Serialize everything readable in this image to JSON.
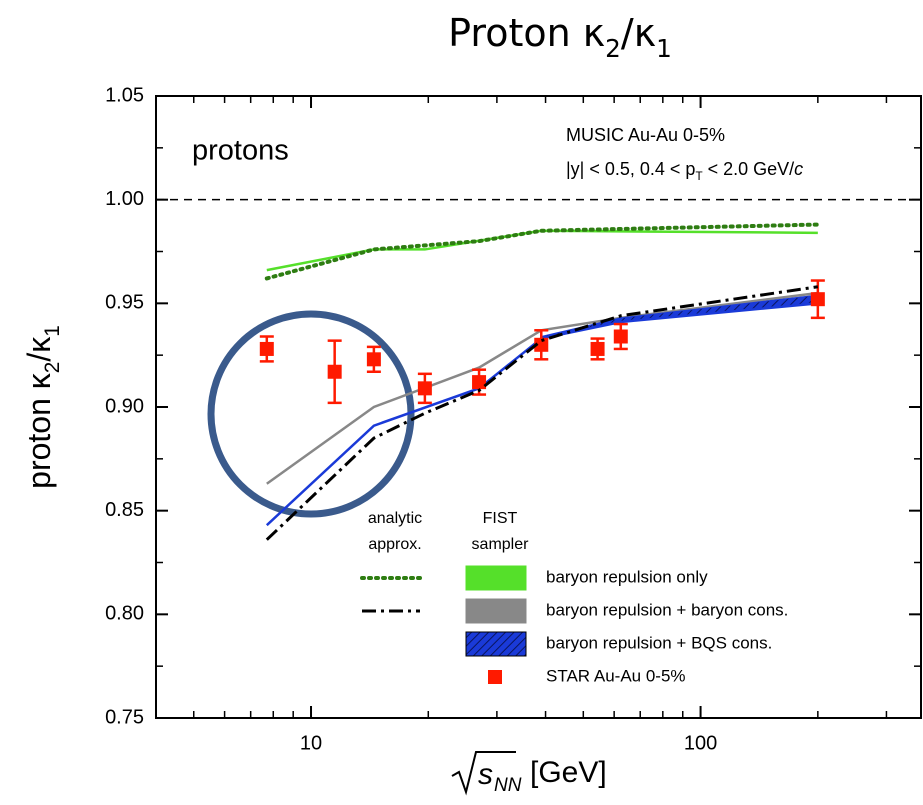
{
  "chart_data": {
    "type": "line",
    "title_parts": [
      "Proton κ",
      "2",
      "/κ",
      "1"
    ],
    "ylabel_parts": [
      "proton κ",
      "2",
      "/κ",
      "1"
    ],
    "xlabel": {
      "symbol": "s",
      "subscript": "NN",
      "unit": "[GeV]"
    },
    "annotations": {
      "label": "protons",
      "model": "MUSIC Au-Au 0-5%",
      "cuts_parts": [
        "|y| < 0.5, 0.4 < p",
        "T",
        " < 2.0 GeV/",
        "c"
      ]
    },
    "xscale": "log",
    "xlim": [
      4,
      368
    ],
    "ylim": [
      0.75,
      1.05
    ],
    "xticks": [
      10,
      100
    ],
    "xminorticks": [
      5,
      6,
      7,
      8,
      9,
      20,
      30,
      40,
      50,
      60,
      70,
      80,
      90,
      200,
      300
    ],
    "yticks": [
      0.75,
      {
        "value": 0.8,
        "label": "0.80"
      },
      0.85,
      {
        "value": 0.9,
        "label": "0.90"
      },
      0.95,
      {
        "value": 1.0,
        "label": "1.00"
      },
      1.05
    ],
    "yminorticks": [
      0.775,
      0.825,
      0.875,
      0.925,
      0.975,
      1.025
    ],
    "reference_line": 1.0,
    "legend_headers": [
      [
        "analytic",
        "approx."
      ],
      [
        "FIST",
        "sampler"
      ]
    ],
    "series": [
      {
        "name": "baryon repulsion only",
        "color": "#55e02a",
        "style": "solid",
        "x": [
          7.7,
          14.5,
          19.6,
          39,
          200
        ],
        "values": [
          0.966,
          0.976,
          0.976,
          0.985,
          0.984
        ]
      },
      {
        "name": "baryon repulsion + baryon cons.",
        "color": "#888888",
        "style": "solid",
        "x": [
          7.7,
          14.5,
          27,
          39,
          62.4,
          200
        ],
        "values": [
          0.863,
          0.9,
          0.919,
          0.937,
          0.943,
          0.955
        ]
      },
      {
        "name": "baryon repulsion + BQS cons.",
        "color": "#1a3ad8",
        "style": "band",
        "x": [
          7.7,
          14.5,
          27,
          39,
          62.4,
          200
        ],
        "values": [
          0.843,
          0.891,
          0.909,
          0.933,
          0.941,
          0.95
        ],
        "upper": [
          null,
          null,
          null,
          0.934,
          0.943,
          0.954
        ]
      },
      {
        "name": "STAR Au-Au 0-5%",
        "color": "#ff1a00",
        "style": "points",
        "x": [
          7.7,
          11.5,
          14.5,
          19.6,
          27,
          39,
          54.4,
          62.4,
          200
        ],
        "values": [
          0.928,
          0.917,
          0.923,
          0.909,
          0.912,
          0.93,
          0.928,
          0.934,
          0.952
        ],
        "errors": [
          0.006,
          0.015,
          0.006,
          0.007,
          0.006,
          0.007,
          0.005,
          0.006,
          0.009
        ]
      }
    ],
    "analytic": [
      {
        "color": "#2e7d12",
        "style": "dotted",
        "legend_row": 0,
        "x": [
          7.7,
          14.5,
          27,
          39,
          200
        ],
        "values": [
          0.962,
          0.976,
          0.98,
          0.985,
          0.988
        ]
      },
      {
        "color": "#000000",
        "style": "dashdot",
        "legend_row": 1,
        "x": [
          7.7,
          14.5,
          19.6,
          27,
          39,
          62.4,
          200
        ],
        "values": [
          0.836,
          0.885,
          0.897,
          0.908,
          0.932,
          0.944,
          0.958
        ]
      }
    ]
  }
}
